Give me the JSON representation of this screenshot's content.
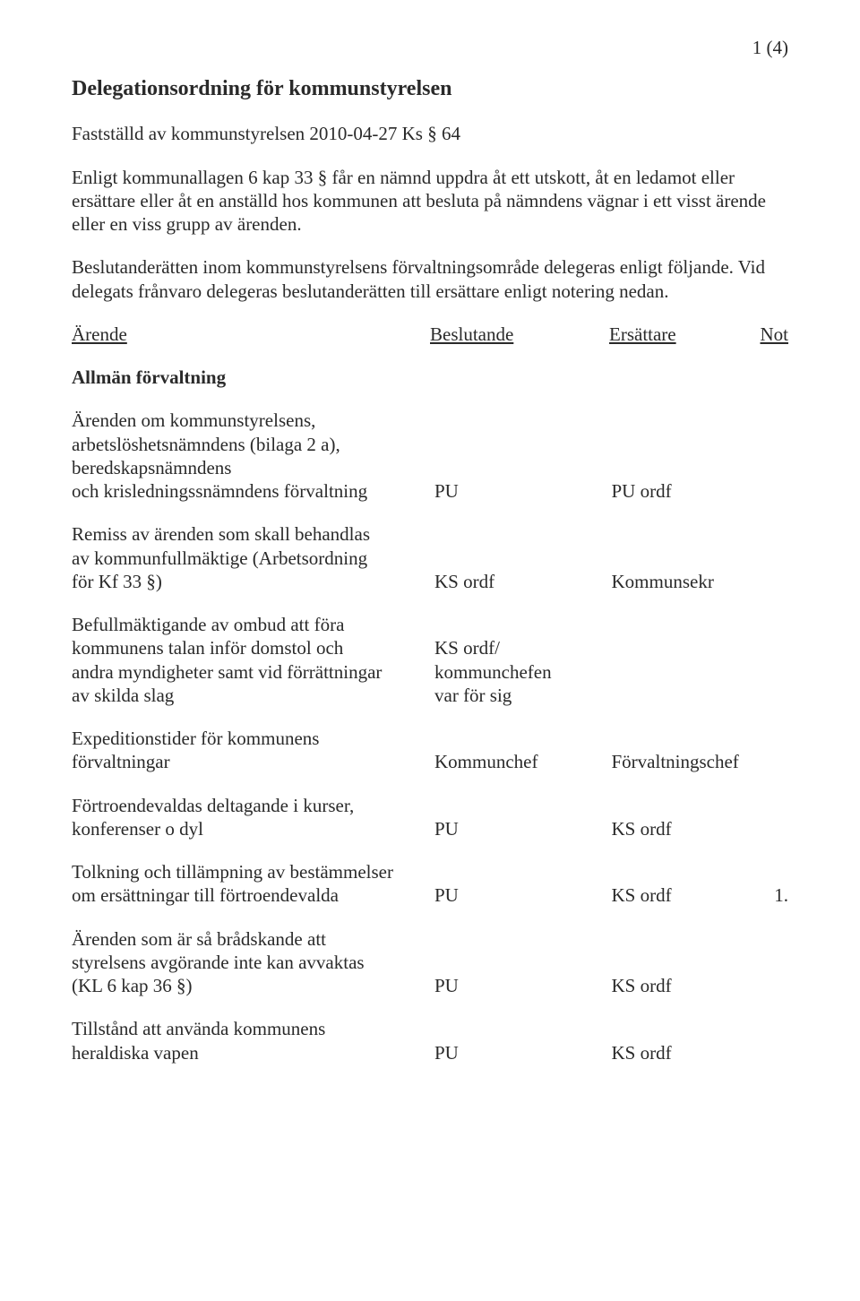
{
  "colors": {
    "text": "#2a2a2a",
    "background": "#ffffff"
  },
  "typography": {
    "font_family": "Times New Roman",
    "body_fontsize_pt": 16,
    "title_fontsize_pt": 18
  },
  "page_number": "1 (4)",
  "title": "Delegationsordning för kommunstyrelsen",
  "subtitle": "Fastställd av kommunstyrelsen  2010-04-27 Ks § 64",
  "para1": "Enligt kommunallagen 6 kap 33 § får en nämnd uppdra åt ett utskott, åt en ledamot eller ersättare eller åt en anställd hos kommunen att besluta på nämndens vägnar i ett visst ärende eller en viss grupp av ärenden.",
  "para2": "Beslutanderätten inom kommunstyrelsens förvaltningsområde delegeras enligt följande. Vid delegats frånvaro delegeras beslutanderätten till ersättare enligt notering nedan.",
  "headers": {
    "h1": "Ärende",
    "h2": "Beslutande",
    "h3": "Ersättare",
    "h4": "Not"
  },
  "section_heading": "Allmän förvaltning",
  "rows": [
    {
      "desc": "Ärenden om kommunstyrelsens,\narbetslöshetsnämndens (bilaga 2 a),\nberedskapsnämndens\noch krisledningssnämndens förvaltning",
      "besl": "PU",
      "ers": "PU ordf",
      "not": ""
    },
    {
      "desc": "Remiss av ärenden som skall behandlas\nav kommunfullmäktige (Arbetsordning\nför Kf 33 §)",
      "besl": "KS ordf",
      "ers": "Kommunsekr",
      "not": ""
    },
    {
      "desc": "Befullmäktigande av ombud att föra\nkommunens talan inför domstol och\nandra myndigheter samt vid förrättningar\nav skilda slag",
      "besl": "KS ordf/\nkommunchefen\nvar för sig",
      "ers": "",
      "not": ""
    },
    {
      "desc": "Expeditionstider för kommunens\nförvaltningar",
      "besl": "Kommunchef",
      "ers": "Förvaltningschef",
      "not": ""
    },
    {
      "desc": "Förtroendevaldas deltagande i kurser,\nkonferenser o dyl",
      "besl": "PU",
      "ers": "KS ordf",
      "not": ""
    },
    {
      "desc": "Tolkning och tillämpning av bestämmelser\nom ersättningar till förtroendevalda",
      "besl": "PU",
      "ers": "KS ordf",
      "not": "1."
    },
    {
      "desc": "Ärenden som är så brådskande att\nstyrelsens avgörande inte kan avvaktas\n(KL 6 kap 36 §)",
      "besl": "PU",
      "ers": "KS ordf",
      "not": ""
    },
    {
      "desc": "Tillstånd att använda kommunens\nheraldiska vapen",
      "besl": "PU",
      "ers": "KS ordf",
      "not": ""
    }
  ]
}
